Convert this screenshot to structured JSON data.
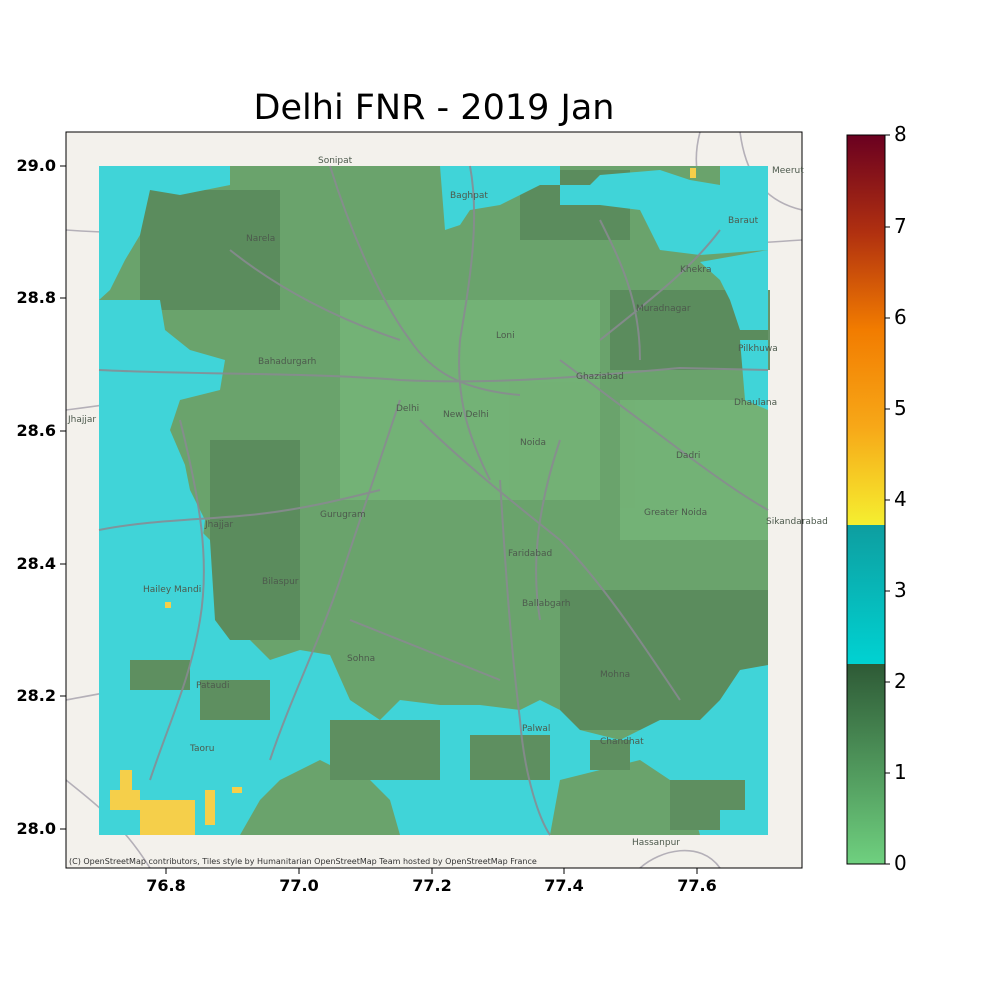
{
  "title": "Delhi FNR - 2019 Jan",
  "attribution": "(C) OpenStreetMap contributors, Tiles style by Humanitarian OpenStreetMap Team hosted by OpenStreetMap France",
  "x_ticks": [
    "76.8",
    "77.0",
    "77.2",
    "77.4",
    "77.6"
  ],
  "y_ticks": [
    "29.0",
    "28.8",
    "28.6",
    "28.4",
    "28.2",
    "28.0"
  ],
  "colorbar": {
    "ticks": [
      "0",
      "1",
      "2",
      "3",
      "4",
      "5",
      "6",
      "7",
      "8"
    ],
    "range": [
      0,
      8
    ],
    "segments": [
      {
        "from": 0,
        "to": 2.25,
        "colors": [
          "#6fd07f",
          "#2e5a36"
        ]
      },
      {
        "from": 2.25,
        "to": 3.7,
        "colors": [
          "#00d2d2",
          "#0e9ea0"
        ]
      },
      {
        "from": 3.7,
        "to": 8,
        "colors": [
          "#f5ef30",
          "#f7a818",
          "#f27c00",
          "#b03010",
          "#6a0020"
        ]
      }
    ]
  },
  "places": [
    "Sonipat",
    "Baghpat",
    "Meerut",
    "Narela",
    "Khekra",
    "Baraut",
    "Muradnagar",
    "Pilkhuwa",
    "Bahadurgarh",
    "Loni",
    "Ghaziabad",
    "Dhaulana",
    "Jhajjar",
    "Delhi",
    "New Delhi",
    "Noida",
    "Dadri",
    "Gurugram",
    "Greater Noida",
    "Sikandarabad",
    "Jhajjar",
    "Faridabad",
    "Bilaspur",
    "Ballabgarh",
    "Hailey Mandi",
    "Sohna",
    "Mohna",
    "Pataudi",
    "Taoru",
    "Palwal",
    "Chandhat",
    "Hassanpur"
  ],
  "chart_data": {
    "type": "heatmap",
    "title": "Delhi FNR - 2019 Jan",
    "x_extent": [
      76.7,
      77.71
    ],
    "y_extent": [
      27.99,
      29.0
    ],
    "axis_xlim": [
      76.65,
      77.76
    ],
    "axis_ylim": [
      27.94,
      29.05
    ],
    "value_classes": {
      "low_green": "FNR 0-2.25",
      "cyan": "FNR 2.25-3.7",
      "yellow": "FNR 3.7-4.5"
    },
    "regions": [
      {
        "class": "cyan",
        "area": "north-west edge and northern border above 28.85"
      },
      {
        "class": "cyan",
        "area": "western strip 76.7-76.95 from 28.35 to 28.7"
      },
      {
        "class": "cyan",
        "area": "south-west corner 76.7-77.1, 27.99-28.35"
      },
      {
        "class": "cyan",
        "area": "southern strip 77.05-77.71, 27.99-28.15"
      },
      {
        "class": "low_green",
        "area": "central Delhi and surrounding region"
      },
      {
        "class": "yellow",
        "area": "south-west corner near 76.8, 28.02"
      }
    ]
  }
}
